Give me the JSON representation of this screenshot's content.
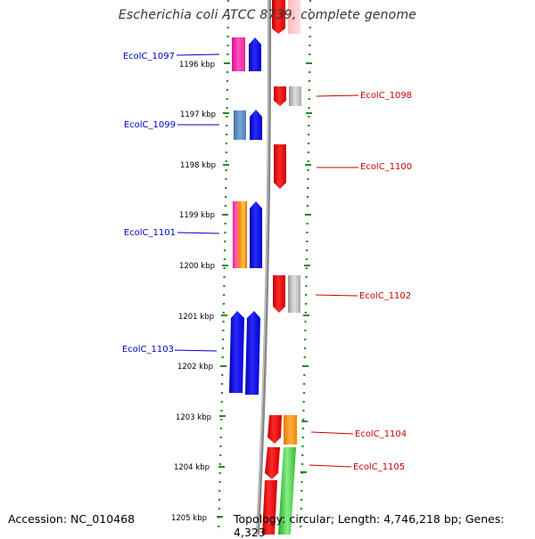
{
  "title": "Escherichia coli ATCC 8739, complete genome",
  "footer": {
    "accession": "Accession: NC_010468",
    "topology": "Topology: circular; Length: 4,746,218 bp; Genes: 4,323"
  },
  "ticks": [
    "1196 kbp",
    "1197 kbp",
    "1198 kbp",
    "1199 kbp",
    "1200 kbp",
    "1201 kbp",
    "1202 kbp",
    "1203 kbp",
    "1204 kbp",
    "1205 kbp"
  ],
  "genes_left": [
    "EcolC_1097",
    "EcolC_1099",
    "EcolC_1101",
    "EcolC_1103"
  ],
  "genes_right": [
    "EcolC_1098",
    "EcolC_1100",
    "EcolC_1102",
    "EcolC_1104",
    "EcolC_1105"
  ],
  "colors": {
    "forward_label": "#0000cc",
    "reverse_label": "#cc0000",
    "forward_gene": "#0000ee",
    "reverse_gene": "#ee0000",
    "scale_dots": "#228822",
    "backbone": "#888888"
  }
}
